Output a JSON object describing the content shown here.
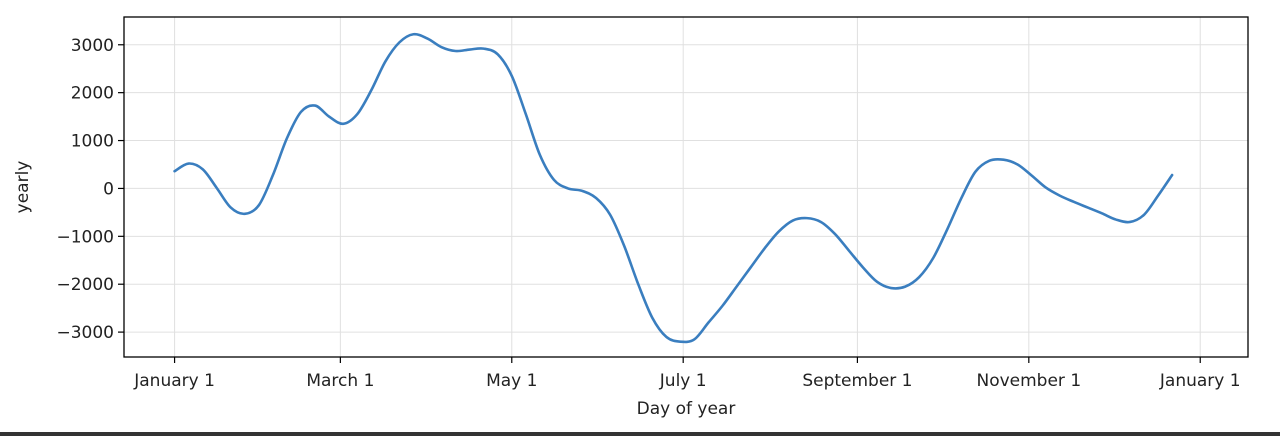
{
  "chart_data": {
    "type": "line",
    "title": "",
    "xlabel": "Day of year",
    "ylabel": "yearly",
    "x_ticks": [
      {
        "label": "January 1",
        "day": 0
      },
      {
        "label": "March 1",
        "day": 59
      },
      {
        "label": "May 1",
        "day": 120
      },
      {
        "label": "July 1",
        "day": 181
      },
      {
        "label": "September 1",
        "day": 243
      },
      {
        "label": "November 1",
        "day": 304
      },
      {
        "label": "January 1",
        "day": 365
      }
    ],
    "y_ticks": [
      -3000,
      -2000,
      -1000,
      0,
      1000,
      2000,
      3000
    ],
    "y_tick_labels": [
      "−3000",
      "−2000",
      "−1000",
      "0",
      "1000",
      "2000",
      "3000"
    ],
    "xlim": [
      -18,
      382
    ],
    "ylim": [
      -3520,
      3580
    ],
    "grid": true,
    "series": [
      {
        "color": "#3a7ebf",
        "points": [
          [
            0,
            360
          ],
          [
            5,
            520
          ],
          [
            10,
            400
          ],
          [
            15,
            10
          ],
          [
            20,
            -400
          ],
          [
            25,
            -530
          ],
          [
            30,
            -350
          ],
          [
            35,
            280
          ],
          [
            40,
            1050
          ],
          [
            45,
            1600
          ],
          [
            50,
            1730
          ],
          [
            55,
            1500
          ],
          [
            60,
            1350
          ],
          [
            65,
            1550
          ],
          [
            70,
            2050
          ],
          [
            75,
            2650
          ],
          [
            80,
            3050
          ],
          [
            85,
            3220
          ],
          [
            90,
            3130
          ],
          [
            95,
            2950
          ],
          [
            100,
            2870
          ],
          [
            105,
            2900
          ],
          [
            110,
            2920
          ],
          [
            115,
            2800
          ],
          [
            120,
            2350
          ],
          [
            125,
            1550
          ],
          [
            130,
            700
          ],
          [
            135,
            180
          ],
          [
            140,
            0
          ],
          [
            145,
            -50
          ],
          [
            150,
            -200
          ],
          [
            155,
            -550
          ],
          [
            160,
            -1200
          ],
          [
            165,
            -2000
          ],
          [
            170,
            -2700
          ],
          [
            175,
            -3100
          ],
          [
            180,
            -3200
          ],
          [
            185,
            -3150
          ],
          [
            190,
            -2800
          ],
          [
            195,
            -2450
          ],
          [
            200,
            -2050
          ],
          [
            205,
            -1650
          ],
          [
            210,
            -1250
          ],
          [
            215,
            -900
          ],
          [
            220,
            -670
          ],
          [
            225,
            -620
          ],
          [
            230,
            -700
          ],
          [
            235,
            -950
          ],
          [
            240,
            -1300
          ],
          [
            245,
            -1650
          ],
          [
            250,
            -1950
          ],
          [
            255,
            -2080
          ],
          [
            260,
            -2050
          ],
          [
            265,
            -1850
          ],
          [
            270,
            -1450
          ],
          [
            275,
            -850
          ],
          [
            280,
            -200
          ],
          [
            285,
            350
          ],
          [
            290,
            580
          ],
          [
            295,
            600
          ],
          [
            300,
            500
          ],
          [
            305,
            270
          ],
          [
            310,
            20
          ],
          [
            315,
            -150
          ],
          [
            320,
            -280
          ],
          [
            325,
            -400
          ],
          [
            330,
            -520
          ],
          [
            335,
            -650
          ],
          [
            340,
            -700
          ],
          [
            345,
            -550
          ],
          [
            350,
            -150
          ],
          [
            355,
            280
          ]
        ]
      }
    ]
  }
}
